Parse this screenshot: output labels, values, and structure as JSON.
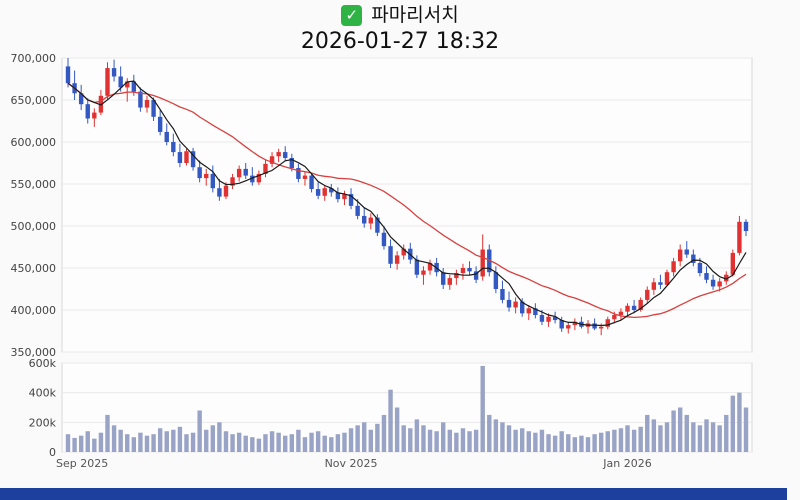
{
  "header": {
    "title": "파마리서치",
    "datetime": "2026-01-27 18:32",
    "check_glyph": "✓"
  },
  "colors": {
    "up": "#e03232",
    "down": "#3358c2",
    "volume": "#99a3c5",
    "ma_short": "#1a1a1a",
    "ma_long": "#d84040",
    "grid": "#e9e9e9",
    "plot_border": "#d8d8d8",
    "axis_text": "#444444",
    "x_label_text": "#555555",
    "bottom_bar": "#1d3f9e",
    "check_green": "#2fb344",
    "background": "#fafafa"
  },
  "chart_data": {
    "type": "candlestick_with_volume",
    "title": "파마리서치",
    "datetime": "2026-01-27 18:32",
    "price_unit": 1000,
    "volume_unit": 1000,
    "ma_short_period": 5,
    "ma_long_period": 20,
    "price_axis": {
      "min": 350000,
      "max": 700000,
      "interval": 50000,
      "tick_labels": [
        "700,000",
        "650,000",
        "600,000",
        "550,000",
        "500,000",
        "450,000",
        "400,000",
        "350,000"
      ]
    },
    "volume_axis": {
      "min": 0,
      "max": 600000,
      "ticks": [
        {
          "value": 600000,
          "label": "600k"
        },
        {
          "value": 400000,
          "label": "400k"
        },
        {
          "value": 200000,
          "label": "200k"
        },
        {
          "value": 0,
          "label": "0"
        }
      ]
    },
    "x_labels": [
      {
        "index": 0,
        "label": "Sep 2025"
      },
      {
        "index": 43,
        "label": "Nov 2025"
      },
      {
        "index": 85,
        "label": "Jan 2026"
      }
    ],
    "candles": [
      [
        690,
        700,
        665,
        670,
        120
      ],
      [
        670,
        685,
        650,
        658,
        95
      ],
      [
        658,
        668,
        638,
        645,
        110
      ],
      [
        645,
        652,
        622,
        628,
        140
      ],
      [
        628,
        640,
        618,
        635,
        90
      ],
      [
        635,
        662,
        632,
        655,
        130
      ],
      [
        655,
        695,
        650,
        688,
        250
      ],
      [
        688,
        698,
        672,
        678,
        180
      ],
      [
        678,
        690,
        660,
        665,
        150
      ],
      [
        665,
        676,
        648,
        672,
        120
      ],
      [
        672,
        680,
        655,
        660,
        100
      ],
      [
        660,
        665,
        636,
        641,
        130
      ],
      [
        641,
        655,
        635,
        650,
        110
      ],
      [
        650,
        653,
        625,
        630,
        120
      ],
      [
        630,
        638,
        608,
        612,
        160
      ],
      [
        612,
        622,
        596,
        600,
        140
      ],
      [
        600,
        610,
        583,
        588,
        150
      ],
      [
        588,
        598,
        570,
        575,
        170
      ],
      [
        575,
        592,
        572,
        589,
        120
      ],
      [
        589,
        593,
        566,
        570,
        130
      ],
      [
        570,
        578,
        552,
        557,
        280
      ],
      [
        557,
        568,
        548,
        562,
        150
      ],
      [
        562,
        572,
        540,
        545,
        180
      ],
      [
        545,
        556,
        530,
        535,
        200
      ],
      [
        535,
        552,
        532,
        548,
        140
      ],
      [
        548,
        562,
        544,
        558,
        120
      ],
      [
        558,
        572,
        553,
        568,
        130
      ],
      [
        568,
        575,
        556,
        560,
        110
      ],
      [
        560,
        570,
        548,
        552,
        100
      ],
      [
        552,
        566,
        549,
        562,
        90
      ],
      [
        562,
        578,
        558,
        574,
        120
      ],
      [
        574,
        588,
        570,
        583,
        140
      ],
      [
        583,
        592,
        576,
        588,
        130
      ],
      [
        588,
        595,
        578,
        581,
        110
      ],
      [
        581,
        586,
        565,
        569,
        120
      ],
      [
        569,
        574,
        552,
        556,
        150
      ],
      [
        556,
        565,
        548,
        560,
        100
      ],
      [
        560,
        562,
        540,
        544,
        130
      ],
      [
        544,
        552,
        532,
        536,
        140
      ],
      [
        536,
        548,
        530,
        545,
        110
      ],
      [
        545,
        550,
        535,
        540,
        100
      ],
      [
        540,
        546,
        528,
        532,
        120
      ],
      [
        532,
        542,
        525,
        538,
        130
      ],
      [
        538,
        545,
        520,
        524,
        160
      ],
      [
        524,
        532,
        508,
        512,
        180
      ],
      [
        512,
        522,
        498,
        503,
        200
      ],
      [
        503,
        515,
        496,
        510,
        150
      ],
      [
        510,
        514,
        488,
        492,
        190
      ],
      [
        492,
        500,
        472,
        476,
        250
      ],
      [
        476,
        484,
        450,
        455,
        420
      ],
      [
        455,
        470,
        448,
        465,
        300
      ],
      [
        465,
        478,
        460,
        473,
        180
      ],
      [
        473,
        480,
        455,
        460,
        160
      ],
      [
        460,
        465,
        438,
        442,
        220
      ],
      [
        442,
        452,
        430,
        447,
        180
      ],
      [
        447,
        460,
        442,
        456,
        150
      ],
      [
        456,
        462,
        440,
        445,
        140
      ],
      [
        445,
        450,
        425,
        430,
        200
      ],
      [
        430,
        442,
        424,
        438,
        150
      ],
      [
        438,
        448,
        430,
        444,
        130
      ],
      [
        444,
        455,
        436,
        450,
        160
      ],
      [
        450,
        458,
        442,
        446,
        140
      ],
      [
        446,
        452,
        432,
        436,
        150
      ],
      [
        440,
        490,
        435,
        472,
        580
      ],
      [
        472,
        478,
        440,
        445,
        250
      ],
      [
        445,
        452,
        420,
        425,
        220
      ],
      [
        425,
        435,
        408,
        412,
        200
      ],
      [
        412,
        422,
        398,
        403,
        180
      ],
      [
        403,
        415,
        396,
        410,
        150
      ],
      [
        410,
        414,
        392,
        396,
        160
      ],
      [
        396,
        406,
        388,
        402,
        140
      ],
      [
        402,
        408,
        390,
        394,
        130
      ],
      [
        394,
        400,
        382,
        386,
        150
      ],
      [
        386,
        396,
        380,
        392,
        120
      ],
      [
        392,
        398,
        384,
        388,
        110
      ],
      [
        388,
        392,
        374,
        378,
        140
      ],
      [
        378,
        386,
        372,
        382,
        120
      ],
      [
        382,
        390,
        376,
        386,
        100
      ],
      [
        386,
        392,
        378,
        380,
        110
      ],
      [
        380,
        388,
        372,
        384,
        100
      ],
      [
        384,
        390,
        376,
        378,
        120
      ],
      [
        378,
        384,
        370,
        380,
        130
      ],
      [
        380,
        392,
        377,
        389,
        140
      ],
      [
        389,
        398,
        384,
        394,
        150
      ],
      [
        394,
        402,
        388,
        398,
        160
      ],
      [
        398,
        408,
        392,
        405,
        180
      ],
      [
        405,
        412,
        396,
        400,
        150
      ],
      [
        400,
        415,
        398,
        412,
        170
      ],
      [
        412,
        428,
        408,
        424,
        250
      ],
      [
        424,
        438,
        418,
        433,
        220
      ],
      [
        433,
        442,
        425,
        430,
        180
      ],
      [
        430,
        448,
        428,
        445,
        200
      ],
      [
        445,
        462,
        440,
        458,
        280
      ],
      [
        458,
        478,
        452,
        472,
        300
      ],
      [
        472,
        482,
        462,
        466,
        250
      ],
      [
        466,
        472,
        452,
        456,
        200
      ],
      [
        456,
        462,
        440,
        444,
        180
      ],
      [
        444,
        452,
        432,
        436,
        220
      ],
      [
        436,
        442,
        424,
        428,
        200
      ],
      [
        428,
        438,
        422,
        434,
        180
      ],
      [
        434,
        446,
        430,
        442,
        250
      ],
      [
        442,
        472,
        440,
        468,
        380
      ],
      [
        468,
        512,
        465,
        505,
        400
      ],
      [
        505,
        508,
        488,
        494,
        300
      ]
    ]
  }
}
